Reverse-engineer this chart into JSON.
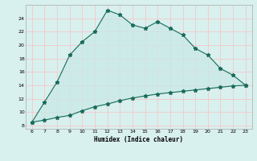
{
  "xlabel": "Humidex (Indice chaleur)",
  "x_upper": [
    6,
    7,
    8,
    9,
    10,
    11,
    12,
    13,
    14,
    15,
    16,
    17,
    18,
    19,
    20,
    21,
    22,
    23
  ],
  "y_upper": [
    8.5,
    11.5,
    14.5,
    18.5,
    20.5,
    22.0,
    25.2,
    24.5,
    23.0,
    22.5,
    23.5,
    22.5,
    21.5,
    19.5,
    18.5,
    16.5,
    15.5,
    14.0
  ],
  "x_lower": [
    6,
    7,
    8,
    9,
    10,
    11,
    12,
    13,
    14,
    15,
    16,
    17,
    18,
    19,
    20,
    21,
    22,
    23
  ],
  "y_lower": [
    8.5,
    8.8,
    9.2,
    9.5,
    10.2,
    10.8,
    11.2,
    11.7,
    12.1,
    12.4,
    12.7,
    12.9,
    13.1,
    13.3,
    13.5,
    13.7,
    13.9,
    14.0
  ],
  "line_color": "#1a6b5a",
  "fill_color": "#c8eae6",
  "bg_color": "#d8f0ee",
  "grid_color": "#f5c8c8",
  "xlim": [
    5.5,
    23.5
  ],
  "ylim": [
    7.5,
    26
  ],
  "yticks": [
    8,
    10,
    12,
    14,
    16,
    18,
    20,
    22,
    24
  ],
  "xticks": [
    6,
    7,
    8,
    9,
    10,
    11,
    12,
    13,
    14,
    15,
    16,
    17,
    18,
    19,
    20,
    21,
    22,
    23
  ]
}
